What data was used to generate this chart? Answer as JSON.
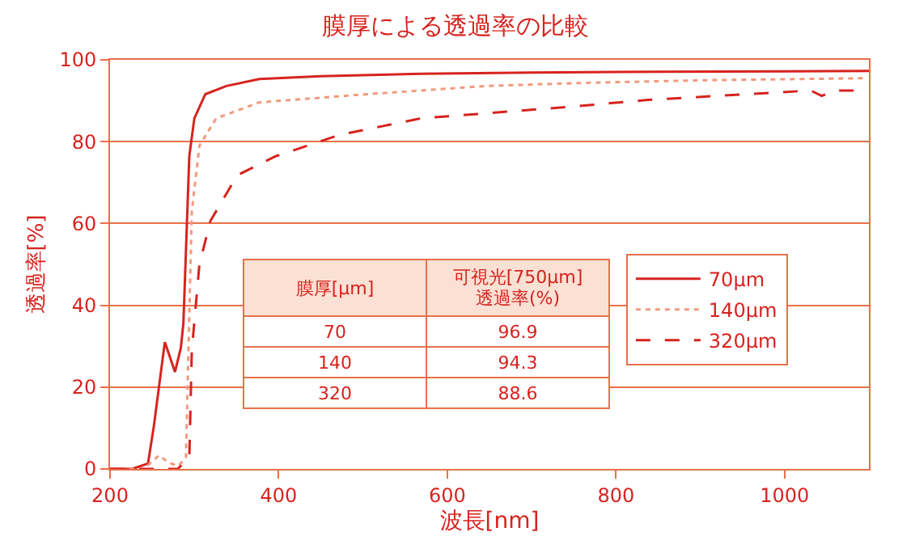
{
  "chart_data": {
    "type": "line",
    "title": "膜厚による透過率の比較",
    "xlabel": "波長[nm]",
    "ylabel": "透過率[%]",
    "xlim": [
      200,
      1100
    ],
    "xticks": [
      200,
      400,
      600,
      800,
      1000
    ],
    "ylim": [
      0,
      100
    ],
    "yticks": [
      0,
      20,
      40,
      60,
      80,
      100
    ],
    "grid": "y",
    "legend": "right",
    "series": [
      {
        "name": "70μm",
        "color": "#d7231e",
        "line_style": "solid",
        "x": [
          200,
          226,
          245,
          252,
          265,
          277,
          284,
          287,
          294,
          300,
          313,
          338,
          377,
          450,
          569,
          700,
          850,
          1000,
          1100
        ],
        "values": [
          0,
          0,
          1.3,
          10.5,
          31,
          23.7,
          29.6,
          35.6,
          76.4,
          85.7,
          91.6,
          93.6,
          95.3,
          96,
          96.6,
          96.9,
          97.1,
          97.2,
          97.3
        ]
      },
      {
        "name": "140μm",
        "color": "#f09a7c",
        "line_style": "dotted",
        "x": [
          200,
          240,
          258,
          270,
          281,
          290,
          297,
          306,
          326,
          377,
          505,
          646,
          750,
          900,
          1094
        ],
        "values": [
          0,
          0,
          3.3,
          1.5,
          0.7,
          2.8,
          63,
          79,
          85.7,
          89.6,
          91.6,
          93.6,
          94.3,
          95,
          95.5
        ]
      },
      {
        "name": "320μm",
        "color": "#d7231e",
        "line_style": "dashed",
        "x": [
          200,
          280,
          294,
          297,
          306,
          319,
          351,
          396,
          473,
          569,
          750,
          838,
          1031,
          1044,
          1060,
          1096
        ],
        "values": [
          0,
          0,
          2.6,
          29,
          50,
          60.6,
          71.8,
          76.4,
          81.7,
          85.7,
          88.6,
          90.2,
          92.5,
          91.2,
          92.5,
          92.5
        ]
      }
    ],
    "annotations": [
      "膜厚[μm]",
      "可視光[750μm]\n透過率(%)",
      "70",
      "96.9",
      "140",
      "94.3",
      "320",
      "88.6"
    ]
  }
}
